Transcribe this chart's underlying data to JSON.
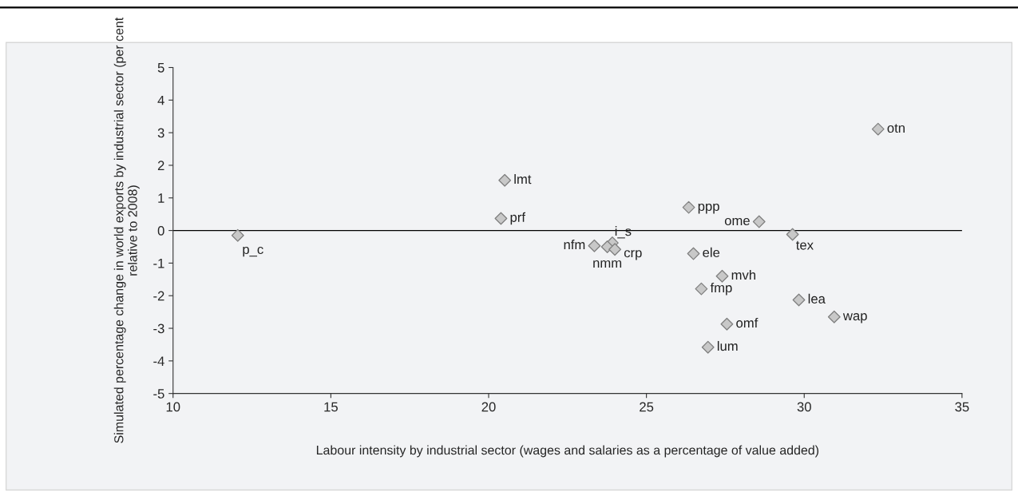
{
  "chart_data": {
    "type": "scatter",
    "xlabel": "Labour intensity by industrial sector (wages and salaries as a percentage of value added)",
    "ylabel": "Simulated percentage change in world exports by industrial sector (per cent relative to 2008)",
    "x": [
      12.05,
      20.51,
      20.39,
      23.35,
      23.92,
      23.76,
      24.0,
      26.34,
      28.57,
      29.63,
      26.49,
      27.4,
      26.74,
      27.55,
      26.95,
      29.83,
      30.95,
      32.34
    ],
    "series": [
      {
        "color": "#c8c8c8",
        "values": [
          -0.15,
          1.54,
          0.37,
          -0.47,
          -0.38,
          -0.5,
          -0.58,
          0.71,
          0.27,
          -0.12,
          -0.71,
          -1.4,
          -1.79,
          -2.87,
          -3.58,
          -2.13,
          -2.65,
          3.11
        ]
      }
    ],
    "annotations": [
      {
        "text": "p_c",
        "x": 12.05,
        "y": -0.15
      },
      {
        "text": "lmt",
        "x": 20.51,
        "y": 1.54
      },
      {
        "text": "prf",
        "x": 20.39,
        "y": 0.37
      },
      {
        "text": "nfm",
        "x": 23.35,
        "y": -0.47
      },
      {
        "text": "i_s",
        "x": 23.92,
        "y": -0.38
      },
      {
        "text": "nmm",
        "x": 23.76,
        "y": -0.5
      },
      {
        "text": "crp",
        "x": 24.0,
        "y": -0.58
      },
      {
        "text": "ppp",
        "x": 26.34,
        "y": 0.71
      },
      {
        "text": "ome",
        "x": 28.57,
        "y": 0.27
      },
      {
        "text": "tex",
        "x": 29.63,
        "y": -0.12
      },
      {
        "text": "ele",
        "x": 26.49,
        "y": -0.71
      },
      {
        "text": "mvh",
        "x": 27.4,
        "y": -1.4
      },
      {
        "text": "fmp",
        "x": 26.74,
        "y": -1.79
      },
      {
        "text": "omf",
        "x": 27.55,
        "y": -2.87
      },
      {
        "text": "lum",
        "x": 26.95,
        "y": -3.58
      },
      {
        "text": "lea",
        "x": 29.83,
        "y": -2.13
      },
      {
        "text": "wap",
        "x": 30.95,
        "y": -2.65
      },
      {
        "text": "otn",
        "x": 32.34,
        "y": 3.11
      }
    ],
    "ref_lines": [
      {
        "axis": "y",
        "value": 0,
        "color": "#000000"
      }
    ],
    "xlim": [
      10,
      35
    ],
    "xticks": [
      10,
      15,
      20,
      25,
      30,
      35
    ],
    "ylim": [
      -5,
      5
    ],
    "yticks": [
      -5,
      -4,
      -3,
      -2,
      -1,
      0,
      1,
      2,
      3,
      4,
      5
    ],
    "marker": "diamond",
    "grid": false,
    "legend": false
  }
}
